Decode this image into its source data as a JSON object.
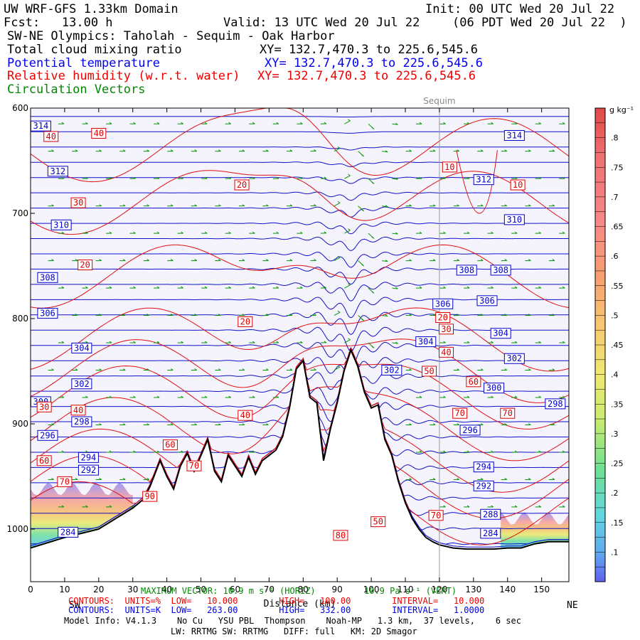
{
  "header": {
    "model": "UW WRF-GFS 1.33km Domain",
    "init": "Init: 00 UTC Wed 20 Jul 22",
    "fcst": "Fcst:   13.00 h",
    "valid": "Valid: 13 UTC Wed 20 Jul 22",
    "valid_local": "(06 PDT Wed 20 Jul 22  )",
    "section": "SW-NE Olympics: Taholah - Sequim - Oak Harbor",
    "fields": [
      {
        "name": "Total cloud mixing ratio",
        "xy": "XY= 132.7,470.3 to 225.6,545.6",
        "color": "#000000"
      },
      {
        "name": "Potential temperature",
        "xy": "XY= 132.7,470.3 to 225.6,545.6",
        "color": "#0000ee"
      },
      {
        "name": "Relative humidity (w.r.t. water)",
        "xy": "XY= 132.7,470.3 to 225.6,545.6",
        "color": "#ee0000"
      },
      {
        "name": "Circulation Vectors",
        "xy": "",
        "color": "#008800"
      }
    ]
  },
  "chart_data": {
    "type": "cross-section",
    "x_range": [
      0,
      158
    ],
    "x_ticks": [
      "0",
      "10",
      "20",
      "30",
      "40",
      "50",
      "60",
      "70",
      "80",
      "90",
      "100",
      "110",
      "120",
      "130",
      "140",
      "150"
    ],
    "y_range_hpa": [
      600,
      1050
    ],
    "y_ticks": [
      "600",
      "700",
      "800",
      "900",
      "1000"
    ],
    "xlabel": "Distance (km)",
    "left_end": "SW",
    "right_end": "NE",
    "marker": {
      "label": "Sequim",
      "x_km": 120
    },
    "terrain": [
      [
        0,
        1018
      ],
      [
        5,
        1013
      ],
      [
        10,
        1008
      ],
      [
        15,
        1004
      ],
      [
        20,
        1000
      ],
      [
        25,
        990
      ],
      [
        30,
        980
      ],
      [
        33,
        972
      ],
      [
        35,
        960
      ],
      [
        38,
        935
      ],
      [
        40,
        950
      ],
      [
        42,
        962
      ],
      [
        44,
        940
      ],
      [
        46,
        928
      ],
      [
        48,
        945
      ],
      [
        50,
        930
      ],
      [
        52,
        915
      ],
      [
        54,
        945
      ],
      [
        56,
        955
      ],
      [
        58,
        930
      ],
      [
        60,
        940
      ],
      [
        62,
        950
      ],
      [
        64,
        932
      ],
      [
        66,
        948
      ],
      [
        68,
        935
      ],
      [
        70,
        930
      ],
      [
        72,
        925
      ],
      [
        74,
        912
      ],
      [
        76,
        885
      ],
      [
        78,
        848
      ],
      [
        80,
        840
      ],
      [
        82,
        875
      ],
      [
        84,
        880
      ],
      [
        86,
        935
      ],
      [
        88,
        905
      ],
      [
        90,
        880
      ],
      [
        92,
        850
      ],
      [
        94,
        830
      ],
      [
        96,
        845
      ],
      [
        98,
        870
      ],
      [
        100,
        885
      ],
      [
        102,
        882
      ],
      [
        104,
        915
      ],
      [
        106,
        930
      ],
      [
        108,
        955
      ],
      [
        110,
        975
      ],
      [
        112,
        990
      ],
      [
        114,
        1000
      ],
      [
        116,
        1008
      ],
      [
        118,
        1012
      ],
      [
        120,
        1015
      ],
      [
        124,
        1018
      ],
      [
        128,
        1019
      ],
      [
        132,
        1019
      ],
      [
        136,
        1019
      ],
      [
        140,
        1018
      ],
      [
        144,
        1018
      ],
      [
        148,
        1014
      ],
      [
        152,
        1012
      ],
      [
        158,
        1012
      ]
    ],
    "theta_labels": [
      {
        "t": "314",
        "x": 3,
        "p": 617
      },
      {
        "t": "314",
        "x": 142,
        "p": 626
      },
      {
        "t": "312",
        "x": 8,
        "p": 660
      },
      {
        "t": "312",
        "x": 133,
        "p": 668
      },
      {
        "t": "310",
        "x": 9,
        "p": 711
      },
      {
        "t": "310",
        "x": 142,
        "p": 706
      },
      {
        "t": "308",
        "x": 5,
        "p": 761
      },
      {
        "t": "308",
        "x": 128,
        "p": 754
      },
      {
        "t": "308",
        "x": 138,
        "p": 754
      },
      {
        "t": "306",
        "x": 5,
        "p": 795
      },
      {
        "t": "306",
        "x": 121,
        "p": 786
      },
      {
        "t": "306",
        "x": 134,
        "p": 783
      },
      {
        "t": "304",
        "x": 15,
        "p": 828
      },
      {
        "t": "304",
        "x": 116,
        "p": 822
      },
      {
        "t": "304",
        "x": 138,
        "p": 814
      },
      {
        "t": "302",
        "x": 15,
        "p": 862
      },
      {
        "t": "302",
        "x": 106,
        "p": 849
      },
      {
        "t": "302",
        "x": 142,
        "p": 838
      },
      {
        "t": "300",
        "x": 3,
        "p": 879
      },
      {
        "t": "300",
        "x": 136,
        "p": 866
      },
      {
        "t": "298",
        "x": 15,
        "p": 898
      },
      {
        "t": "298",
        "x": 154,
        "p": 881
      },
      {
        "t": "296",
        "x": 5,
        "p": 911
      },
      {
        "t": "296",
        "x": 129,
        "p": 906
      },
      {
        "t": "294",
        "x": 17,
        "p": 932
      },
      {
        "t": "294",
        "x": 133,
        "p": 941
      },
      {
        "t": "292",
        "x": 17,
        "p": 944
      },
      {
        "t": "292",
        "x": 133,
        "p": 959
      },
      {
        "t": "288",
        "x": 135,
        "p": 986
      },
      {
        "t": "284",
        "x": 11,
        "p": 1003
      },
      {
        "t": "284",
        "x": 135,
        "p": 1004
      }
    ],
    "rh_labels": [
      {
        "t": "40",
        "x": 6,
        "p": 627
      },
      {
        "t": "40",
        "x": 20,
        "p": 624
      },
      {
        "t": "10",
        "x": 123,
        "p": 656
      },
      {
        "t": "10",
        "x": 143,
        "p": 673
      },
      {
        "t": "20",
        "x": 62,
        "p": 673
      },
      {
        "t": "30",
        "x": 14,
        "p": 690
      },
      {
        "t": "20",
        "x": 16,
        "p": 749
      },
      {
        "t": "20",
        "x": 63,
        "p": 803
      },
      {
        "t": "20",
        "x": 121,
        "p": 799
      },
      {
        "t": "30",
        "x": 122,
        "p": 810
      },
      {
        "t": "40",
        "x": 122,
        "p": 832
      },
      {
        "t": "50",
        "x": 117,
        "p": 850
      },
      {
        "t": "60",
        "x": 130,
        "p": 860
      },
      {
        "t": "70",
        "x": 126,
        "p": 890
      },
      {
        "t": "70",
        "x": 140,
        "p": 890
      },
      {
        "t": "40",
        "x": 63,
        "p": 892
      },
      {
        "t": "30",
        "x": 4,
        "p": 884
      },
      {
        "t": "40",
        "x": 14,
        "p": 887
      },
      {
        "t": "60",
        "x": 41,
        "p": 920
      },
      {
        "t": "70",
        "x": 48,
        "p": 940
      },
      {
        "t": "60",
        "x": 4,
        "p": 935
      },
      {
        "t": "70",
        "x": 10,
        "p": 955
      },
      {
        "t": "90",
        "x": 35,
        "p": 969
      },
      {
        "t": "50",
        "x": 102,
        "p": 993
      },
      {
        "t": "70",
        "x": 119,
        "p": 987
      },
      {
        "t": "80",
        "x": 91,
        "p": 1006
      }
    ],
    "colorbar": {
      "units": "g kg⁻¹",
      "ticks": [
        ".8",
        ".75",
        ".7",
        ".65",
        ".6",
        ".55",
        ".5",
        ".45",
        ".4",
        ".35",
        ".3",
        ".25",
        ".2",
        ".15",
        ".1"
      ],
      "min": 0.05,
      "max": 0.85
    },
    "cloud_regions": [
      {
        "x0": 0,
        "x1": 30,
        "p_top": 962,
        "p_bot": 1018
      },
      {
        "x0": 138,
        "x1": 158,
        "p_top": 990,
        "p_bot": 1019
      }
    ]
  },
  "footer": {
    "max_vector": "MAXIMUM VECTOR: 10.9 m s⁻¹ (HORIZ)",
    "max_vector_vert": "10.9 Pa s⁻¹ (VERT)",
    "rh_contours": "CONTOURS:  UNITS=%  LOW=   10.000        HIGH=   100.00        INTERVAL=   10.000",
    "theta_contours": "CONTOURS:  UNITS=K  LOW=   263.00        HIGH=   332.00        INTERVAL=   1.0000",
    "model_info": "Model Info: V4.1.3    No Cu   YSU PBL  Thompson    Noah-MP   1.3 km,  37 levels,    6 sec",
    "physics": "LW: RRTMG SW: RRTMG   DIFF: full   KM: 2D Smagor"
  }
}
